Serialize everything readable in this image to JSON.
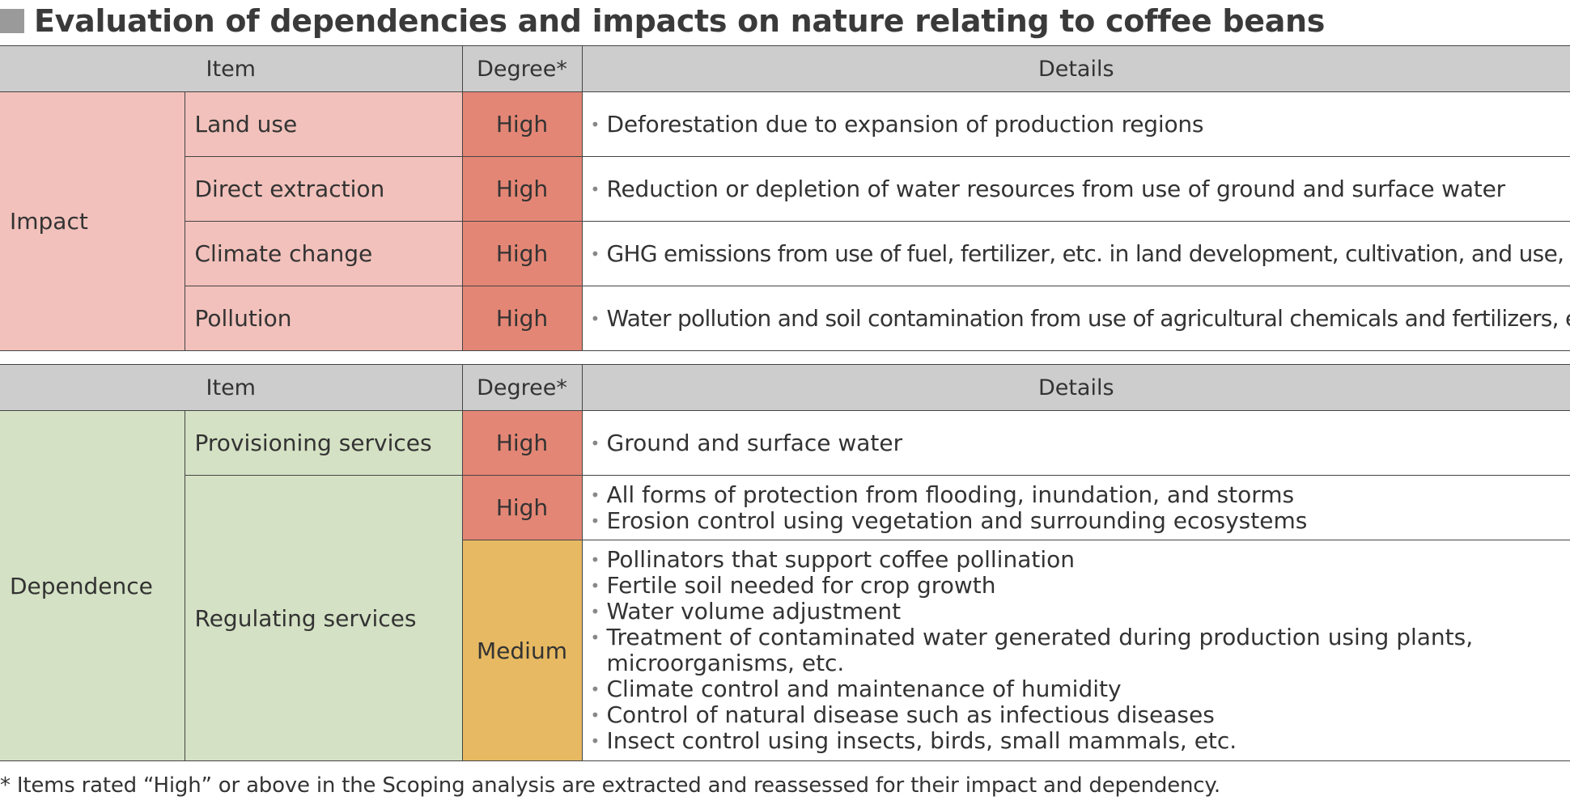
{
  "title": "Evaluation of dependencies and impacts on nature relating to coffee beans",
  "colors": {
    "impact_fill": "#f2c1bb",
    "dependence_fill": "#d4e1c4",
    "high_fill": "#e48675",
    "medium_fill": "#e7b962",
    "header_fill": "#cdcdcd"
  },
  "impact_table": {
    "headers": {
      "item": "Item",
      "degree": "Degree*",
      "details": "Details"
    },
    "category": "Impact",
    "rows": [
      {
        "item": "Land use",
        "degree": "High",
        "details": [
          "Deforestation due to expansion of production regions"
        ]
      },
      {
        "item": "Direct extraction",
        "degree": "High",
        "details": [
          "Reduction or depletion of water resources from use of ground and surface water"
        ]
      },
      {
        "item": "Climate change",
        "degree": "High",
        "details": [
          "GHG emissions from use of fuel, fertilizer, etc. in land development, cultivation, and use, etc"
        ]
      },
      {
        "item": "Pollution",
        "degree": "High",
        "details": [
          "Water pollution and soil contamination from use of agricultural chemicals and fertilizers, etc"
        ]
      }
    ]
  },
  "dependence_table": {
    "headers": {
      "item": "Item",
      "degree": "Degree*",
      "details": "Details"
    },
    "category": "Dependence",
    "rows": [
      {
        "item": "Provisioning services",
        "degree": "High",
        "details": [
          "Ground and surface water"
        ]
      },
      {
        "item": "Regulating services",
        "degree": "High",
        "details": [
          "All forms of protection from flooding, inundation, and storms",
          "Erosion control using vegetation and surrounding ecosystems"
        ]
      },
      {
        "item": "",
        "degree": "Medium",
        "details": [
          "Pollinators that support coffee pollination",
          "Fertile soil needed for crop growth",
          "Water volume adjustment",
          "Treatment of contaminated water generated during production using plants, microorganisms, etc.",
          "Climate control and maintenance of humidity",
          "Control of natural disease such as infectious diseases",
          "Insect control using insects, birds, small mammals, etc."
        ]
      }
    ]
  },
  "bullet": "•",
  "footnote": "* Items rated “High” or above in the Scoping analysis are extracted and reassessed for their impact and dependency."
}
